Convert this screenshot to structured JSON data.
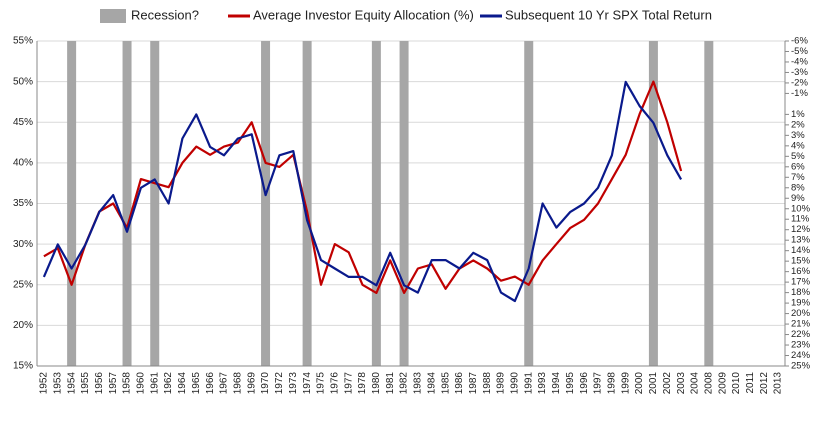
{
  "chart_data": {
    "type": "line",
    "categories": [
      "1952",
      "1953",
      "1954",
      "1955",
      "1956",
      "1957",
      "1958",
      "1960",
      "1961",
      "1962",
      "1964",
      "1965",
      "1966",
      "1967",
      "1968",
      "1969",
      "1970",
      "1972",
      "1973",
      "1974",
      "1975",
      "1976",
      "1977",
      "1978",
      "1980",
      "1981",
      "1982",
      "1983",
      "1984",
      "1985",
      "1986",
      "1987",
      "1988",
      "1989",
      "1990",
      "1991",
      "1993",
      "1994",
      "1995",
      "1996",
      "1997",
      "1998",
      "1999",
      "2000",
      "2001",
      "2002",
      "2003",
      "2004",
      "2008",
      "2009",
      "2010",
      "2011",
      "2012",
      "2013"
    ],
    "recession_name": "Recession?",
    "recession_color": "#a6a6a6",
    "recessions": [
      "1954",
      "1958",
      "1961",
      "1970",
      "1974",
      "1980",
      "1982",
      "1991",
      "2001",
      "2008"
    ],
    "series": [
      {
        "name": "Average Investor Equity Allocation (%)",
        "color": "#c00000",
        "axis": "y",
        "values": [
          28.5,
          29.5,
          25,
          30,
          34,
          35,
          32,
          38,
          37.5,
          37,
          40,
          42,
          41,
          42,
          42.5,
          45,
          40,
          39.5,
          41,
          34,
          25,
          30,
          29,
          25,
          24,
          28,
          24,
          27,
          27.5,
          24.5,
          27,
          28,
          27,
          25.5,
          26,
          25,
          28,
          30,
          32,
          33,
          35,
          38,
          41,
          46,
          50,
          45,
          39,
          null,
          null,
          null,
          null,
          null,
          null,
          null
        ]
      },
      {
        "name": "Subsequent 10 Yr SPX Total Return",
        "color": "#0a1a8c",
        "axis": "y2",
        "values": [
          16.5,
          13.4,
          15.7,
          13.4,
          10.3,
          8.7,
          12.2,
          8.0,
          7.2,
          9.5,
          3.3,
          1.0,
          4.1,
          4.9,
          3.3,
          2.9,
          8.7,
          4.9,
          4.5,
          11.1,
          14.9,
          15.7,
          16.5,
          16.5,
          17.3,
          14.2,
          17.3,
          18.0,
          14.9,
          14.9,
          15.7,
          14.2,
          14.9,
          18.0,
          18.8,
          15.7,
          9.5,
          11.8,
          10.3,
          9.5,
          8.0,
          4.9,
          -2.1,
          0.2,
          1.8,
          4.9,
          7.2,
          null,
          null,
          null,
          null,
          null,
          null,
          null
        ]
      }
    ],
    "ylim": [
      15,
      55
    ],
    "yticks": [
      {
        "value": 15,
        "label": "15%"
      },
      {
        "value": 20,
        "label": "20%"
      },
      {
        "value": 25,
        "label": "25%"
      },
      {
        "value": 30,
        "label": "30%"
      },
      {
        "value": 35,
        "label": "35%"
      },
      {
        "value": 40,
        "label": "40%"
      },
      {
        "value": 45,
        "label": "45%"
      },
      {
        "value": 50,
        "label": "50%"
      },
      {
        "value": 55,
        "label": "55%"
      }
    ],
    "y2lim": [
      25,
      -6
    ],
    "y2ticks": [
      {
        "value": -6,
        "label": "-6%"
      },
      {
        "value": -5,
        "label": "-5%"
      },
      {
        "value": -4,
        "label": "-4%"
      },
      {
        "value": -3,
        "label": "-3%"
      },
      {
        "value": -2,
        "label": "-2%"
      },
      {
        "value": -1,
        "label": "-1%"
      },
      {
        "value": 1,
        "label": "1%"
      },
      {
        "value": 2,
        "label": "2%"
      },
      {
        "value": 3,
        "label": "3%"
      },
      {
        "value": 4,
        "label": "4%"
      },
      {
        "value": 5,
        "label": "5%"
      },
      {
        "value": 6,
        "label": "6%"
      },
      {
        "value": 7,
        "label": "7%"
      },
      {
        "value": 8,
        "label": "8%"
      },
      {
        "value": 9,
        "label": "9%"
      },
      {
        "value": 10,
        "label": "10%"
      },
      {
        "value": 11,
        "label": "11%"
      },
      {
        "value": 12,
        "label": "12%"
      },
      {
        "value": 13,
        "label": "13%"
      },
      {
        "value": 14,
        "label": "14%"
      },
      {
        "value": 15,
        "label": "15%"
      },
      {
        "value": 16,
        "label": "16%"
      },
      {
        "value": 17,
        "label": "17%"
      },
      {
        "value": 18,
        "label": "18%"
      },
      {
        "value": 19,
        "label": "19%"
      },
      {
        "value": 20,
        "label": "20%"
      },
      {
        "value": 21,
        "label": "21%"
      },
      {
        "value": 22,
        "label": "22%"
      },
      {
        "value": 23,
        "label": "23%"
      },
      {
        "value": 24,
        "label": "24%"
      },
      {
        "value": 25,
        "label": "25%"
      }
    ],
    "grid": true
  }
}
